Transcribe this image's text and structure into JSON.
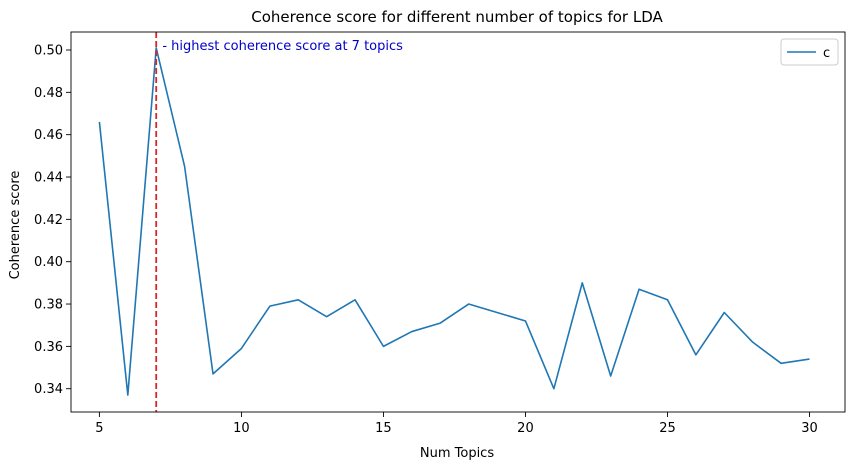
{
  "chart_data": {
    "type": "line",
    "title": "Coherence score for different number of topics for LDA",
    "xlabel": "Num Topics",
    "ylabel": "Coherence score",
    "xlim": [
      4.0,
      31.25
    ],
    "ylim": [
      0.329,
      0.5085
    ],
    "xticks": [
      5,
      10,
      15,
      20,
      25,
      30
    ],
    "yticks": [
      0.34,
      0.36,
      0.38,
      0.4,
      0.42,
      0.44,
      0.46,
      0.48,
      0.5
    ],
    "ytick_labels": [
      "0.34",
      "0.36",
      "0.38",
      "0.40",
      "0.42",
      "0.44",
      "0.46",
      "0.48",
      "0.50"
    ],
    "grid": false,
    "legend": {
      "placement": "top-right",
      "entries": [
        "c"
      ]
    },
    "series": [
      {
        "name": "c",
        "color": "#1f77b4",
        "x": [
          5,
          6,
          7,
          8,
          9,
          10,
          11,
          12,
          13,
          14,
          15,
          16,
          17,
          18,
          19,
          20,
          21,
          22,
          23,
          24,
          25,
          26,
          27,
          28,
          29,
          30
        ],
        "values": [
          0.466,
          0.337,
          0.501,
          0.445,
          0.347,
          0.359,
          0.379,
          0.382,
          0.374,
          0.382,
          0.36,
          0.367,
          0.371,
          0.38,
          0.376,
          0.372,
          0.34,
          0.39,
          0.346,
          0.387,
          0.382,
          0.356,
          0.376,
          0.362,
          0.352,
          0.354
        ]
      }
    ],
    "vline": {
      "x": 7,
      "color": "#d62728",
      "style": "dashed"
    },
    "annotation": {
      "text": " - highest coherence score at 7 topics",
      "x": 7,
      "y": 0.501,
      "color": "#0000cc"
    }
  }
}
